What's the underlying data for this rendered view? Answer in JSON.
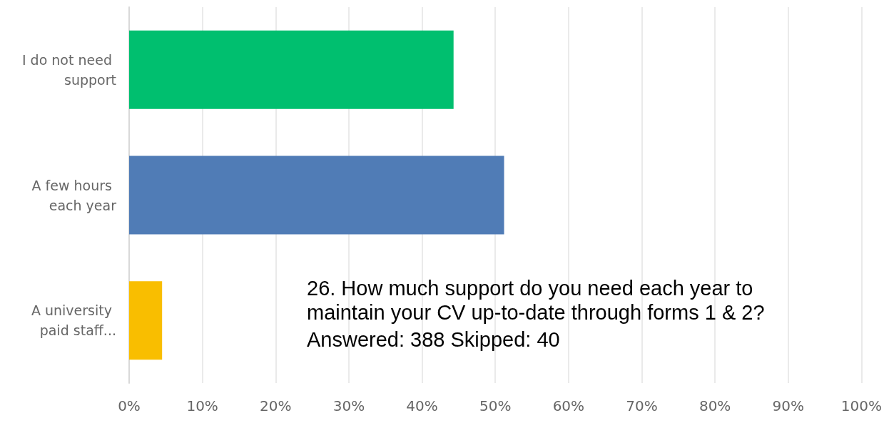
{
  "chart_data": {
    "type": "bar",
    "orientation": "horizontal",
    "title": "26. How much support do you need each year to maintain your CV up-to-date through forms 1 & 2?",
    "subtitle": "Answered: 388 Skipped: 40",
    "categories": [
      "I do not need support",
      "A few hours each year",
      "A university paid staff..."
    ],
    "values": [
      44.3,
      51.2,
      4.5
    ],
    "colors": [
      "#00bf6f",
      "#507cb6",
      "#f9be00"
    ],
    "xlim": [
      0,
      100
    ],
    "xticks": [
      {
        "value": 0,
        "label": "0%"
      },
      {
        "value": 10,
        "label": "10%"
      },
      {
        "value": 20,
        "label": "20%"
      },
      {
        "value": 30,
        "label": "30%"
      },
      {
        "value": 40,
        "label": "40%"
      },
      {
        "value": 50,
        "label": "50%"
      },
      {
        "value": 60,
        "label": "60%"
      },
      {
        "value": 70,
        "label": "70%"
      },
      {
        "value": 80,
        "label": "80%"
      },
      {
        "value": 90,
        "label": "90%"
      },
      {
        "value": 100,
        "label": "100%"
      }
    ],
    "grid": "x"
  }
}
